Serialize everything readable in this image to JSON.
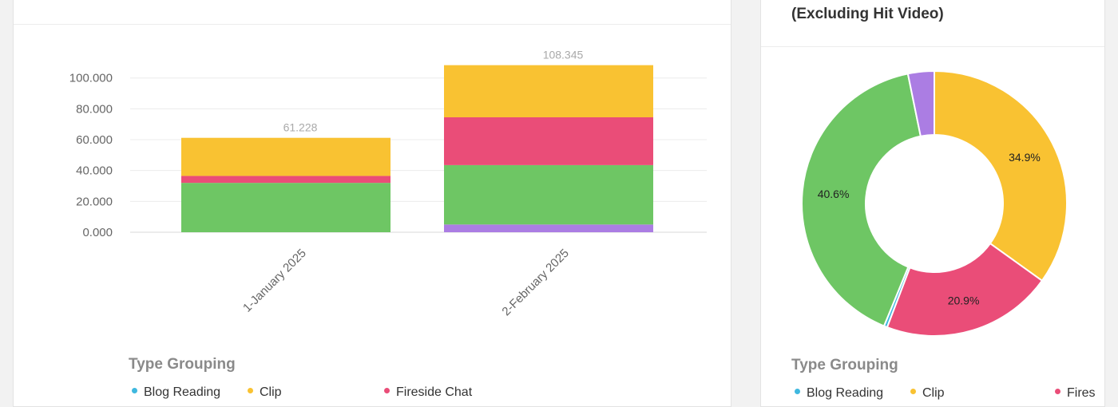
{
  "colors": {
    "blog_reading": "#3fb8df",
    "clip": "#f9c232",
    "fireside_chat": "#ea4d78",
    "green": "#6ec664",
    "purple": "#ab7de3"
  },
  "bar_panel": {
    "legend_title": "Type Grouping",
    "legend": [
      "Blog Reading",
      "Clip",
      "Fireside Chat"
    ]
  },
  "pie_panel": {
    "title": "(Excluding Hit Video)",
    "legend_title": "Type Grouping",
    "legend": [
      "Blog Reading",
      "Clip",
      "Fires"
    ]
  },
  "chart_data": [
    {
      "type": "bar",
      "stacked": true,
      "categories": [
        "1-January 2025",
        "2-February 2025"
      ],
      "totals_labels": [
        "61.228",
        "108.345"
      ],
      "series": [
        {
          "color": "#ab7de3",
          "values": [
            0,
            5.0
          ]
        },
        {
          "color": "#6ec664",
          "values": [
            32.0,
            38.5
          ]
        },
        {
          "color": "#ea4d78",
          "values": [
            4.5,
            31.0
          ]
        },
        {
          "color": "#f9c232",
          "values": [
            24.7,
            33.8
          ]
        }
      ],
      "yticks": [
        "0.000",
        "20.000",
        "40.000",
        "60.000",
        "80.000",
        "100.000"
      ],
      "ylim": [
        0,
        110
      ],
      "grid": true
    },
    {
      "type": "pie",
      "donut": true,
      "slices": [
        {
          "value": 34.9,
          "label": "34.9%",
          "color": "#f9c232"
        },
        {
          "value": 20.9,
          "label": "20.9%",
          "color": "#ea4d78"
        },
        {
          "value": 0.4,
          "label": "",
          "color": "#3fb8df"
        },
        {
          "value": 40.6,
          "label": "40.6%",
          "color": "#6ec664"
        },
        {
          "value": 3.2,
          "label": "",
          "color": "#ab7de3"
        }
      ]
    }
  ]
}
